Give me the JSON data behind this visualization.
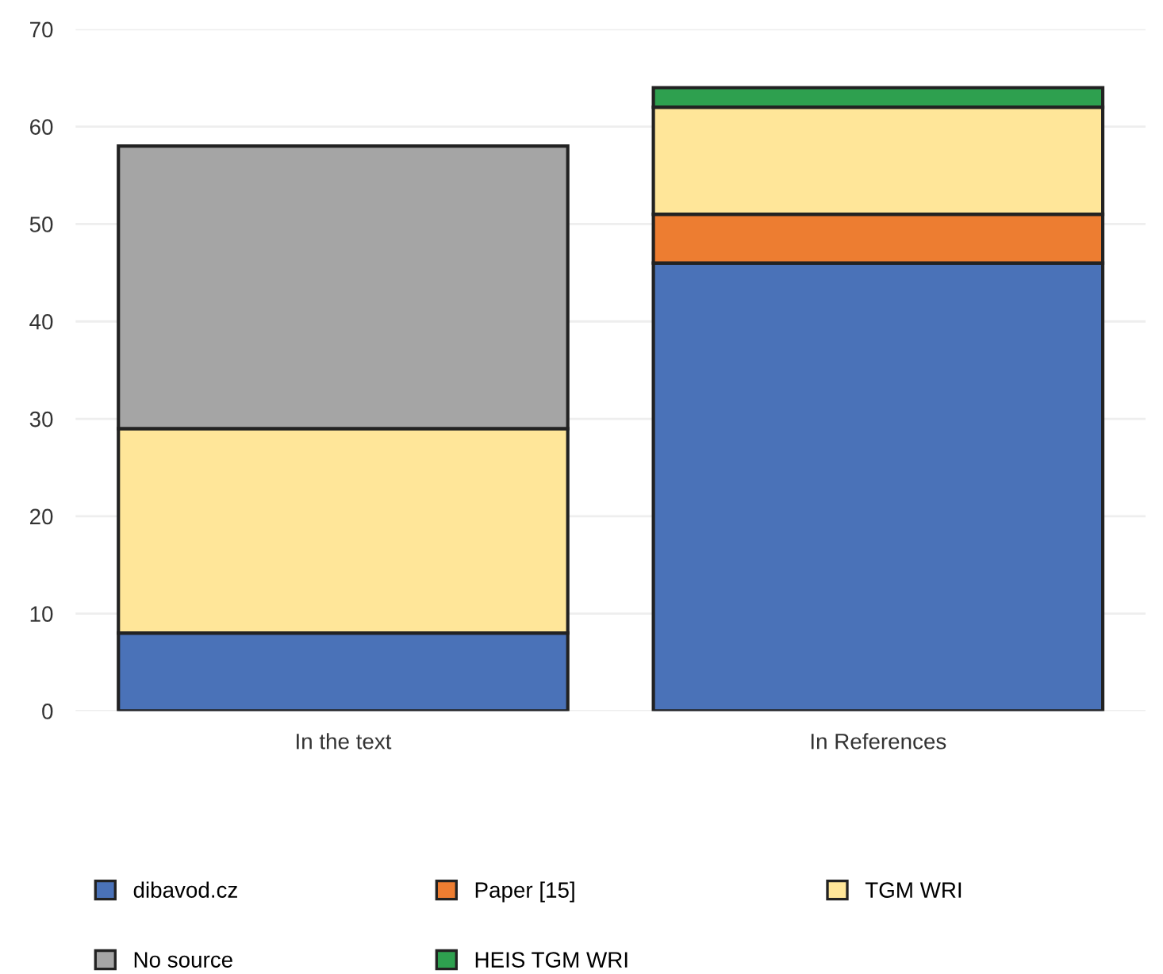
{
  "chart_data": {
    "type": "bar",
    "stacked": true,
    "categories": [
      "In the text",
      "In References"
    ],
    "series": [
      {
        "name": "dibavod.cz",
        "color": "#4a72b8",
        "values": [
          8,
          46
        ]
      },
      {
        "name": "Paper [15]",
        "color": "#ed7d31",
        "values": [
          null,
          5
        ]
      },
      {
        "name": "TGM WRI",
        "color": "#ffe699",
        "values": [
          21,
          11
        ]
      },
      {
        "name": "No source",
        "color": "#a5a5a5",
        "values": [
          29,
          null
        ]
      },
      {
        "name": "HEIS TGM WRI",
        "color": "#2ea04f",
        "values": [
          null,
          2
        ]
      }
    ],
    "ylim": [
      0,
      70
    ],
    "yticks": [
      0,
      10,
      20,
      30,
      40,
      50,
      60,
      70
    ],
    "grid": "y",
    "legend": "bottom"
  }
}
